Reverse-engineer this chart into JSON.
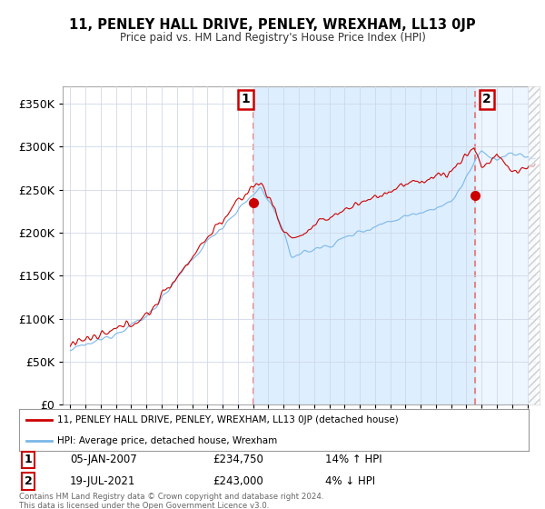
{
  "title": "11, PENLEY HALL DRIVE, PENLEY, WREXHAM, LL13 0JP",
  "subtitle": "Price paid vs. HM Land Registry's House Price Index (HPI)",
  "legend_line1": "11, PENLEY HALL DRIVE, PENLEY, WREXHAM, LL13 0JP (detached house)",
  "legend_line2": "HPI: Average price, detached house, Wrexham",
  "annotation1_label": "1",
  "annotation1_date": "05-JAN-2007",
  "annotation1_price": "£234,750",
  "annotation1_hpi": "14% ↑ HPI",
  "annotation2_label": "2",
  "annotation2_date": "19-JUL-2021",
  "annotation2_price": "£243,000",
  "annotation2_hpi": "4% ↓ HPI",
  "footer": "Contains HM Land Registry data © Crown copyright and database right 2024.\nThis data is licensed under the Open Government Licence v3.0.",
  "sale1_x": 2007.02,
  "sale1_y": 234750,
  "sale2_x": 2021.55,
  "sale2_y": 243000,
  "hpi_color": "#7ab8e8",
  "price_color": "#cc0000",
  "dashed_line_color": "#e87070",
  "grid_color": "#d0d8e8",
  "background_color": "#ffffff",
  "fill_color": "#ddeeff",
  "ylim": [
    0,
    370000
  ],
  "xlim": [
    1994.5,
    2025.8
  ]
}
